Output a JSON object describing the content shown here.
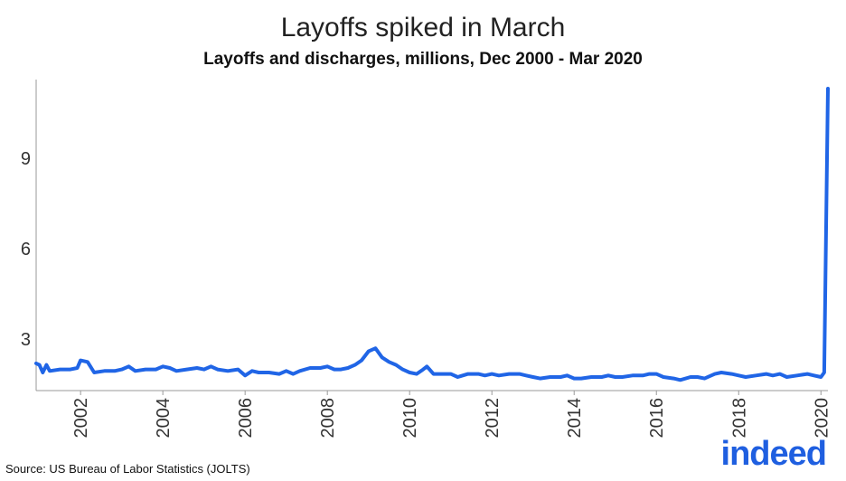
{
  "chart_data": {
    "type": "line",
    "title": "Layoffs spiked in March",
    "subtitle": "Layoffs and discharges, millions, Dec 2000 - Mar 2020",
    "xlabel": "",
    "ylabel": "",
    "x_range": [
      2000.92,
      2020.17
    ],
    "ylim": [
      1.3,
      11.6
    ],
    "y_ticks": [
      3,
      6,
      9
    ],
    "x_ticks": [
      2002,
      2004,
      2006,
      2008,
      2010,
      2012,
      2014,
      2016,
      2018,
      2020
    ],
    "grid": false,
    "line_color": "#2065e6",
    "series": [
      {
        "points": [
          [
            2000.92,
            2.2
          ],
          [
            2001.0,
            2.15
          ],
          [
            2001.08,
            1.9
          ],
          [
            2001.17,
            2.15
          ],
          [
            2001.25,
            1.95
          ],
          [
            2001.5,
            2.0
          ],
          [
            2001.75,
            2.0
          ],
          [
            2001.92,
            2.05
          ],
          [
            2002.0,
            2.3
          ],
          [
            2002.17,
            2.25
          ],
          [
            2002.33,
            1.9
          ],
          [
            2002.58,
            1.95
          ],
          [
            2002.83,
            1.95
          ],
          [
            2003.0,
            2.0
          ],
          [
            2003.17,
            2.1
          ],
          [
            2003.33,
            1.95
          ],
          [
            2003.58,
            2.0
          ],
          [
            2003.83,
            2.0
          ],
          [
            2004.0,
            2.1
          ],
          [
            2004.17,
            2.05
          ],
          [
            2004.33,
            1.95
          ],
          [
            2004.58,
            2.0
          ],
          [
            2004.83,
            2.05
          ],
          [
            2005.0,
            2.0
          ],
          [
            2005.17,
            2.1
          ],
          [
            2005.33,
            2.0
          ],
          [
            2005.58,
            1.95
          ],
          [
            2005.83,
            2.0
          ],
          [
            2006.0,
            1.8
          ],
          [
            2006.17,
            1.95
          ],
          [
            2006.33,
            1.9
          ],
          [
            2006.58,
            1.9
          ],
          [
            2006.83,
            1.85
          ],
          [
            2007.0,
            1.95
          ],
          [
            2007.17,
            1.85
          ],
          [
            2007.33,
            1.95
          ],
          [
            2007.58,
            2.05
          ],
          [
            2007.83,
            2.05
          ],
          [
            2008.0,
            2.1
          ],
          [
            2008.17,
            2.0
          ],
          [
            2008.33,
            2.0
          ],
          [
            2008.5,
            2.05
          ],
          [
            2008.67,
            2.15
          ],
          [
            2008.83,
            2.3
          ],
          [
            2009.0,
            2.6
          ],
          [
            2009.17,
            2.7
          ],
          [
            2009.33,
            2.4
          ],
          [
            2009.5,
            2.25
          ],
          [
            2009.67,
            2.15
          ],
          [
            2009.83,
            2.0
          ],
          [
            2010.0,
            1.9
          ],
          [
            2010.17,
            1.85
          ],
          [
            2010.33,
            2.0
          ],
          [
            2010.42,
            2.1
          ],
          [
            2010.58,
            1.85
          ],
          [
            2010.83,
            1.85
          ],
          [
            2011.0,
            1.85
          ],
          [
            2011.17,
            1.75
          ],
          [
            2011.42,
            1.85
          ],
          [
            2011.67,
            1.85
          ],
          [
            2011.83,
            1.8
          ],
          [
            2012.0,
            1.85
          ],
          [
            2012.17,
            1.8
          ],
          [
            2012.42,
            1.85
          ],
          [
            2012.67,
            1.85
          ],
          [
            2012.83,
            1.8
          ],
          [
            2013.0,
            1.75
          ],
          [
            2013.17,
            1.7
          ],
          [
            2013.42,
            1.75
          ],
          [
            2013.67,
            1.75
          ],
          [
            2013.83,
            1.8
          ],
          [
            2014.0,
            1.7
          ],
          [
            2014.17,
            1.7
          ],
          [
            2014.42,
            1.75
          ],
          [
            2014.67,
            1.75
          ],
          [
            2014.83,
            1.8
          ],
          [
            2015.0,
            1.75
          ],
          [
            2015.17,
            1.75
          ],
          [
            2015.42,
            1.8
          ],
          [
            2015.67,
            1.8
          ],
          [
            2015.83,
            1.85
          ],
          [
            2016.0,
            1.85
          ],
          [
            2016.17,
            1.75
          ],
          [
            2016.42,
            1.7
          ],
          [
            2016.58,
            1.65
          ],
          [
            2016.83,
            1.75
          ],
          [
            2017.0,
            1.75
          ],
          [
            2017.17,
            1.7
          ],
          [
            2017.42,
            1.85
          ],
          [
            2017.58,
            1.9
          ],
          [
            2017.83,
            1.85
          ],
          [
            2018.0,
            1.8
          ],
          [
            2018.17,
            1.75
          ],
          [
            2018.42,
            1.8
          ],
          [
            2018.67,
            1.85
          ],
          [
            2018.83,
            1.8
          ],
          [
            2019.0,
            1.85
          ],
          [
            2019.17,
            1.75
          ],
          [
            2019.42,
            1.8
          ],
          [
            2019.67,
            1.85
          ],
          [
            2019.83,
            1.8
          ],
          [
            2020.0,
            1.75
          ],
          [
            2020.08,
            1.9
          ],
          [
            2020.17,
            11.3
          ]
        ]
      }
    ]
  },
  "source": "Source: US Bureau of Labor Statistics (JOLTS)",
  "logo_text": "indeed"
}
